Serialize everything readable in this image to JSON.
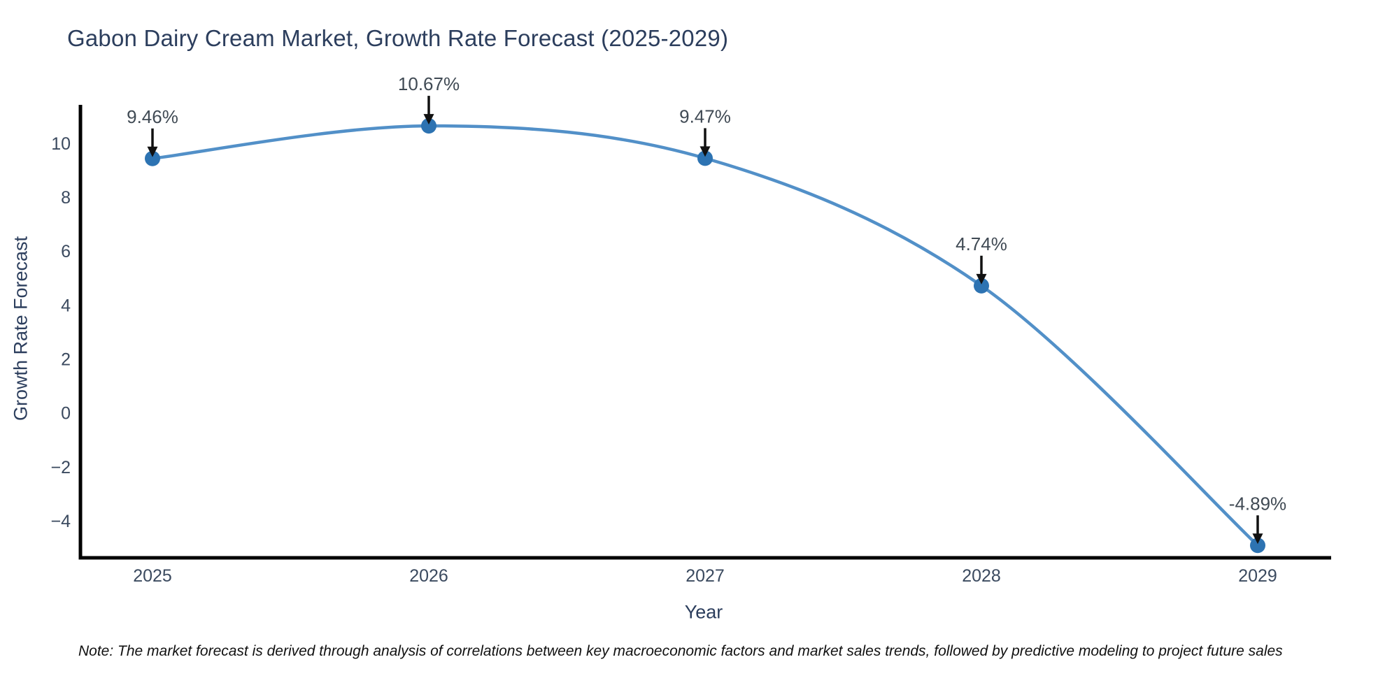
{
  "page": {
    "title": "Gabon Dairy Cream Market, Growth Rate Forecast (2025-2029)",
    "note": "Note: The market forecast is derived through analysis of correlations between key macroeconomic factors and market sales trends, followed by predictive modeling to project future sales"
  },
  "chart_data": {
    "type": "line",
    "title": "Gabon Dairy Cream Market, Growth Rate Forecast (2025-2029)",
    "xlabel": "Year",
    "ylabel": "Growth Rate Forecast",
    "categories": [
      "2025",
      "2026",
      "2027",
      "2028",
      "2029"
    ],
    "values": [
      9.46,
      10.67,
      9.47,
      4.74,
      -4.89
    ],
    "point_labels": [
      "9.46%",
      "10.67%",
      "9.47%",
      "4.74%",
      "-4.89%"
    ],
    "yticks": [
      10,
      8,
      6,
      4,
      2,
      0,
      -2,
      -4
    ],
    "ylim": [
      -5.35,
      11.45
    ],
    "grid": false,
    "legend": false,
    "line_shape": "smooth",
    "marker": "circle",
    "annotation_arrow": "down",
    "colors": {
      "line": "#5290c8",
      "marker": "#2d73b2",
      "axis": "#000000",
      "title_text": "#2c3e5d",
      "tick_text": "#3b4a5f",
      "annotation_text": "#404a54",
      "arrow": "#111111",
      "note_text": "#111111"
    }
  }
}
